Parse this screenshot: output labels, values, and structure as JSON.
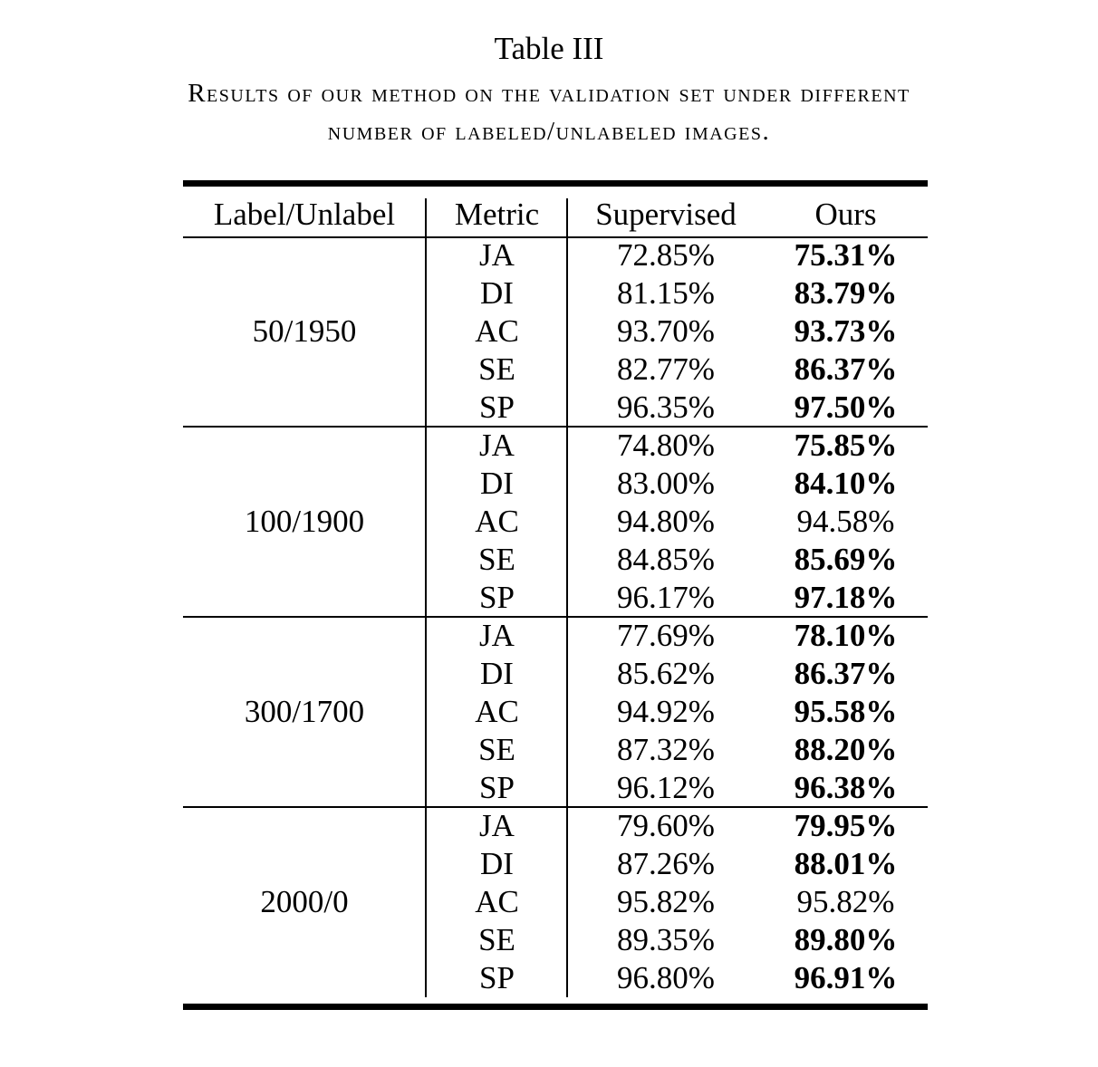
{
  "caption": {
    "title": "Table III",
    "line1": "Results of our method on the validation set under different",
    "line2": "number of labeled/unlabeled images."
  },
  "table": {
    "headers": [
      "Label/Unlabel",
      "Metric",
      "Supervised",
      "Ours"
    ],
    "groups": [
      {
        "label": "50/1950",
        "rows": [
          {
            "metric": "JA",
            "supervised": "72.85%",
            "ours": "75.31%",
            "ours_bold": true
          },
          {
            "metric": "DI",
            "supervised": "81.15%",
            "ours": "83.79%",
            "ours_bold": true
          },
          {
            "metric": "AC",
            "supervised": "93.70%",
            "ours": "93.73%",
            "ours_bold": true
          },
          {
            "metric": "SE",
            "supervised": "82.77%",
            "ours": "86.37%",
            "ours_bold": true
          },
          {
            "metric": "SP",
            "supervised": "96.35%",
            "ours": "97.50%",
            "ours_bold": true
          }
        ]
      },
      {
        "label": "100/1900",
        "rows": [
          {
            "metric": "JA",
            "supervised": "74.80%",
            "ours": "75.85%",
            "ours_bold": true
          },
          {
            "metric": "DI",
            "supervised": "83.00%",
            "ours": "84.10%",
            "ours_bold": true
          },
          {
            "metric": "AC",
            "supervised": "94.80%",
            "ours": "94.58%",
            "ours_bold": false
          },
          {
            "metric": "SE",
            "supervised": "84.85%",
            "ours": "85.69%",
            "ours_bold": true
          },
          {
            "metric": "SP",
            "supervised": "96.17%",
            "ours": "97.18%",
            "ours_bold": true
          }
        ]
      },
      {
        "label": "300/1700",
        "rows": [
          {
            "metric": "JA",
            "supervised": "77.69%",
            "ours": "78.10%",
            "ours_bold": true
          },
          {
            "metric": "DI",
            "supervised": "85.62%",
            "ours": "86.37%",
            "ours_bold": true
          },
          {
            "metric": "AC",
            "supervised": "94.92%",
            "ours": "95.58%",
            "ours_bold": true
          },
          {
            "metric": "SE",
            "supervised": "87.32%",
            "ours": "88.20%",
            "ours_bold": true
          },
          {
            "metric": "SP",
            "supervised": "96.12%",
            "ours": "96.38%",
            "ours_bold": true
          }
        ]
      },
      {
        "label": "2000/0",
        "rows": [
          {
            "metric": "JA",
            "supervised": "79.60%",
            "ours": "79.95%",
            "ours_bold": true
          },
          {
            "metric": "DI",
            "supervised": "87.26%",
            "ours": "88.01%",
            "ours_bold": true
          },
          {
            "metric": "AC",
            "supervised": "95.82%",
            "ours": "95.82%",
            "ours_bold": false
          },
          {
            "metric": "SE",
            "supervised": "89.35%",
            "ours": "89.80%",
            "ours_bold": true
          },
          {
            "metric": "SP",
            "supervised": "96.80%",
            "ours": "96.91%",
            "ours_bold": true
          }
        ]
      }
    ]
  }
}
